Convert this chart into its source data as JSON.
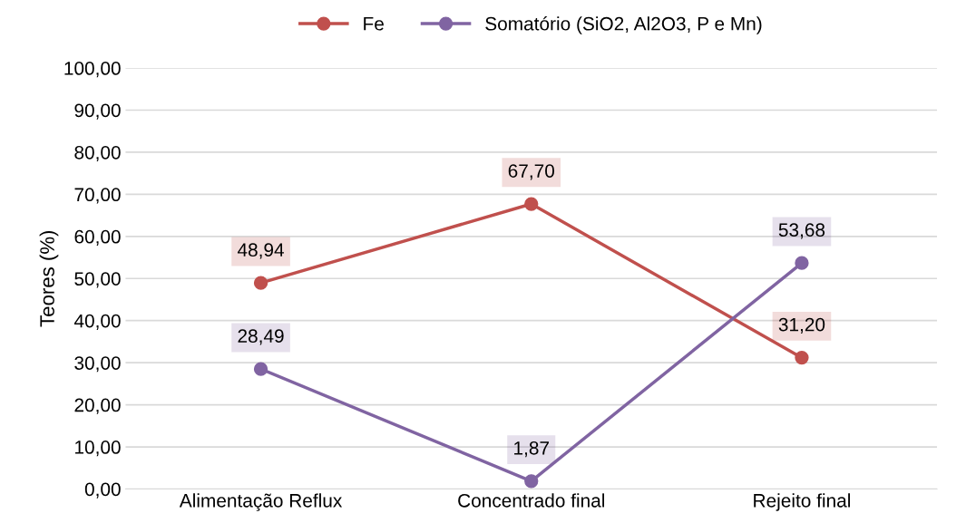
{
  "chart_data": {
    "type": "line",
    "ylabel": "Teores (%)",
    "categories": [
      "Alimentação Reflux",
      "Concentrado final",
      "Rejeito final"
    ],
    "series": [
      {
        "name": "Fe",
        "color": "#c0504d",
        "values": [
          48.94,
          67.7,
          31.2
        ],
        "value_labels": [
          "48,94",
          "67,70",
          "31,20"
        ]
      },
      {
        "name": "Somatório (SiO2, Al2O3, P e Mn)",
        "color": "#8064a2",
        "values": [
          28.49,
          1.87,
          53.68
        ],
        "value_labels": [
          "28,49",
          "1,87",
          "53,68"
        ]
      }
    ],
    "ylim": [
      0,
      100
    ],
    "yticks": [
      {
        "value": 0,
        "label": "0,00"
      },
      {
        "value": 10,
        "label": "10,00"
      },
      {
        "value": 20,
        "label": "20,00"
      },
      {
        "value": 30,
        "label": "30,00"
      },
      {
        "value": 40,
        "label": "40,00"
      },
      {
        "value": 50,
        "label": "50,00"
      },
      {
        "value": 60,
        "label": "60,00"
      },
      {
        "value": 70,
        "label": "70,00"
      },
      {
        "value": 80,
        "label": "80,00"
      },
      {
        "value": 90,
        "label": "90,00"
      },
      {
        "value": 100,
        "label": "100,00"
      }
    ],
    "grid": "y",
    "legend": "top",
    "marker": "circle",
    "line_style": "solid"
  }
}
